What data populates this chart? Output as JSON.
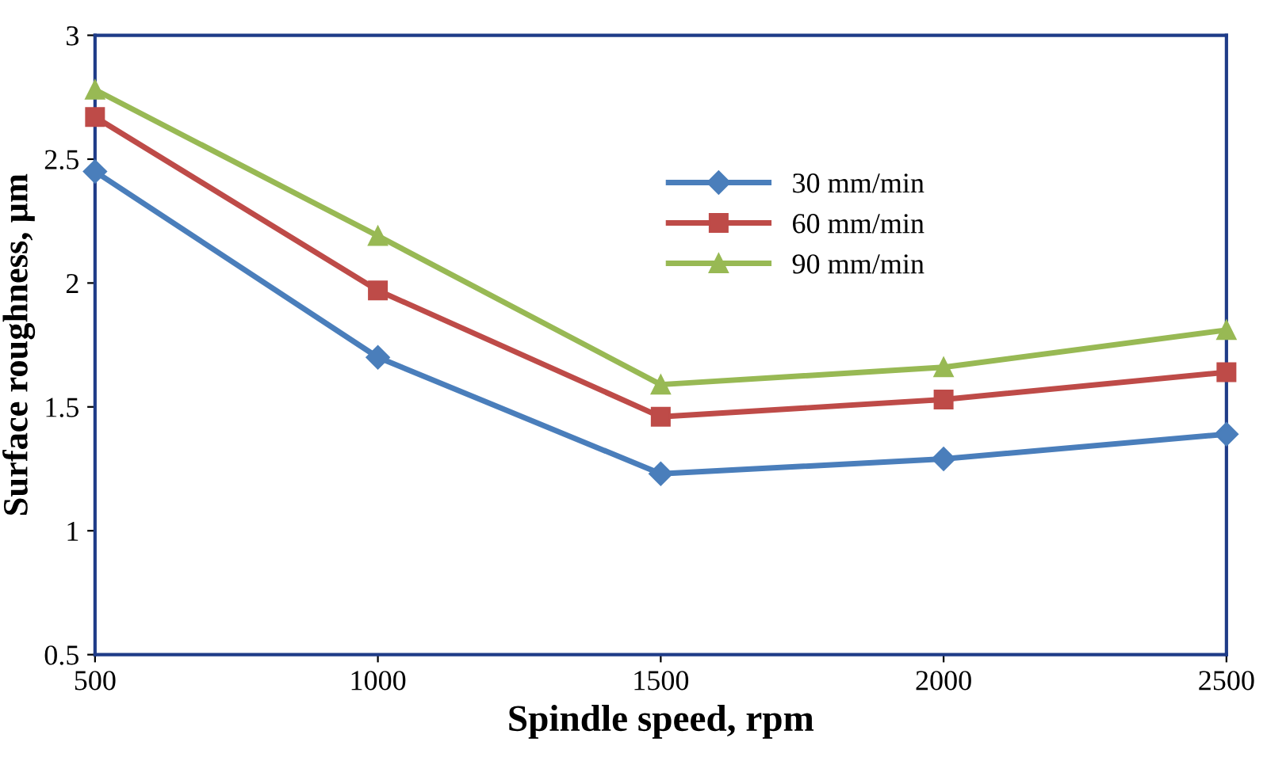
{
  "chart_data": {
    "type": "line",
    "xlabel": "Spindle speed, rpm",
    "ylabel": "Surface roughness, µm",
    "x": [
      500,
      1000,
      1500,
      2000,
      2500
    ],
    "series": [
      {
        "name": "30 mm/min",
        "color": "#4a7ebb",
        "marker": "diamond",
        "values": [
          2.45,
          1.7,
          1.23,
          1.29,
          1.39
        ]
      },
      {
        "name": "60 mm/min",
        "color": "#be4b48",
        "marker": "square",
        "values": [
          2.67,
          1.97,
          1.46,
          1.53,
          1.64
        ]
      },
      {
        "name": "90 mm/min",
        "color": "#98b954",
        "marker": "triangle",
        "values": [
          2.78,
          2.19,
          1.59,
          1.66,
          1.81
        ]
      }
    ],
    "xlim": [
      500,
      2500
    ],
    "xticks": [
      500,
      1000,
      1500,
      2000,
      2500
    ],
    "ylim": [
      0.5,
      3
    ],
    "yticks": [
      0.5,
      1,
      1.5,
      2,
      2.5,
      3
    ],
    "grid": false,
    "legend": "top",
    "line_style": "solid"
  }
}
